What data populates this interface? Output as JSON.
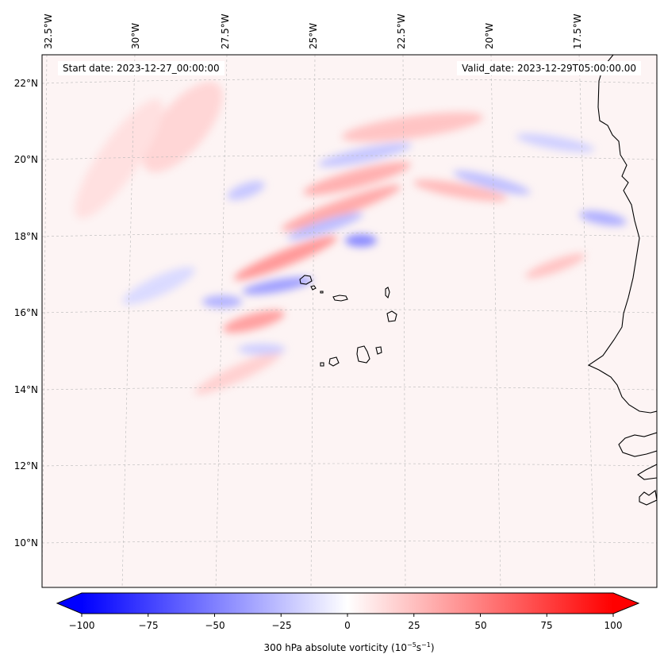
{
  "map": {
    "start_date": "Start date: 2023-12-27_00:00:00",
    "valid_date": "Valid_date: 2023-12-29T05:00:00.00",
    "lon_labels": [
      "32.5°W",
      "30°W",
      "27.5°W",
      "25°W",
      "22.5°W",
      "20°W",
      "17.5°W"
    ],
    "lat_labels": [
      "22°N",
      "20°N",
      "18°N",
      "16°N",
      "14°N",
      "12°N",
      "10°N"
    ]
  },
  "colorbar": {
    "ticks": [
      "−100",
      "−75",
      "−50",
      "−25",
      "0",
      "25",
      "50",
      "75",
      "100"
    ],
    "label_text": "300 hPa absolute vorticity (10",
    "label_exp1": "−5",
    "label_mid": "s",
    "label_exp2": "−1",
    "label_end": ")",
    "min": -100,
    "max": 100,
    "colors": {
      "negative": "#0000ff",
      "neutral": "#ffffff",
      "positive": "#ff0000"
    }
  }
}
